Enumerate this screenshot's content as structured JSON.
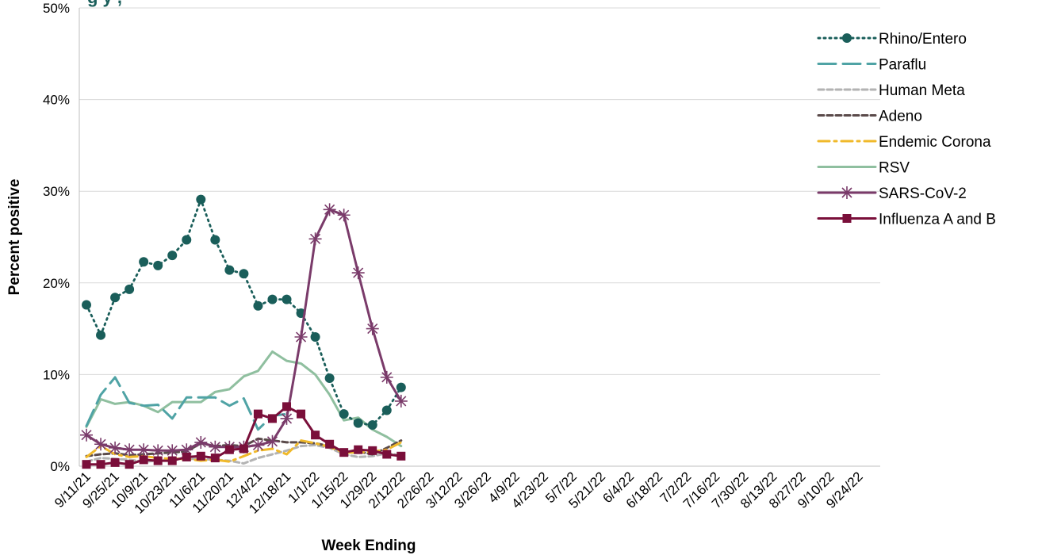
{
  "chart_data": {
    "type": "line",
    "title_fragment": "g   y                              ,",
    "xlabel": "Week Ending",
    "ylabel": "Percent positive",
    "ylim": [
      0,
      50
    ],
    "yticks": [
      "0%",
      "10%",
      "20%",
      "30%",
      "40%",
      "50%"
    ],
    "grid": true,
    "legend": "top-right",
    "x_tick_labels": [
      "9/11/21",
      "9/25/21",
      "10/9/21",
      "10/23/21",
      "11/6/21",
      "11/20/21",
      "12/4/21",
      "12/18/21",
      "1/1/22",
      "1/15/22",
      "1/29/22",
      "2/12/22",
      "2/26/22",
      "3/12/22",
      "3/26/22",
      "4/9/22",
      "4/23/22",
      "5/7/22",
      "5/21/22",
      "6/4/22",
      "6/18/22",
      "7/2/22",
      "7/16/22",
      "7/30/22",
      "8/13/22",
      "8/27/22",
      "9/10/22",
      "9/24/22"
    ],
    "weeks": [
      "9/11/21",
      "9/18/21",
      "9/25/21",
      "10/2/21",
      "10/9/21",
      "10/16/21",
      "10/23/21",
      "10/30/21",
      "11/6/21",
      "11/13/21",
      "11/20/21",
      "11/27/21",
      "12/4/21",
      "12/11/21",
      "12/18/21",
      "12/25/21",
      "1/1/22",
      "1/8/22",
      "1/15/22",
      "1/22/22",
      "1/29/22",
      "2/5/22",
      "2/12/22"
    ],
    "series": [
      {
        "name": "Rhino/Entero",
        "color": "#1a5e5a",
        "style": "dotted-circle",
        "values": [
          17.6,
          14.3,
          18.4,
          19.3,
          22.3,
          21.9,
          23.0,
          24.7,
          29.1,
          24.7,
          21.4,
          21.0,
          17.5,
          18.2,
          18.2,
          16.7,
          14.1,
          9.6,
          5.7,
          4.7,
          4.5,
          6.1,
          8.6
        ]
      },
      {
        "name": "Paraflu",
        "color": "#4fa3a5",
        "style": "long-dash",
        "values": [
          4.4,
          7.8,
          9.7,
          6.9,
          6.6,
          6.7,
          5.2,
          7.5,
          7.5,
          7.5,
          6.6,
          7.4,
          4.0,
          5.5,
          5.7,
          null,
          null,
          null,
          null,
          null,
          null,
          null,
          null
        ]
      },
      {
        "name": "Human Meta",
        "color": "#b3b3b3",
        "style": "dash",
        "values": [
          0.5,
          0.9,
          0.8,
          0.7,
          0.5,
          0.6,
          0.8,
          0.8,
          0.8,
          0.7,
          0.6,
          0.3,
          0.9,
          1.3,
          1.7,
          2.2,
          2.3,
          2.0,
          1.3,
          1.0,
          1.1,
          1.4,
          1.2
        ]
      },
      {
        "name": "Adeno",
        "color": "#5a4a4a",
        "style": "dash",
        "values": [
          1.1,
          1.3,
          1.4,
          1.2,
          1.3,
          1.4,
          1.5,
          1.6,
          2.5,
          2.2,
          2.3,
          2.2,
          3.0,
          2.8,
          2.6,
          2.6,
          2.5,
          2.2,
          1.6,
          1.6,
          1.3,
          2.0,
          2.8
        ]
      },
      {
        "name": "Endemic Corona",
        "color": "#f0b92a",
        "style": "dash-dot",
        "values": [
          1.0,
          2.2,
          1.3,
          1.0,
          1.1,
          0.9,
          0.8,
          0.8,
          0.6,
          0.7,
          0.5,
          1.1,
          1.7,
          1.9,
          1.3,
          2.8,
          2.5,
          2.1,
          1.5,
          1.5,
          1.6,
          1.8,
          2.6
        ]
      },
      {
        "name": "RSV",
        "color": "#8fbf9f",
        "style": "solid",
        "values": [
          4.3,
          7.3,
          6.8,
          7.0,
          6.6,
          5.9,
          7.0,
          7.0,
          7.0,
          8.1,
          8.4,
          9.8,
          10.4,
          12.5,
          11.5,
          11.2,
          10.0,
          7.8,
          5.0,
          5.3,
          4.0,
          3.2,
          2.2
        ]
      },
      {
        "name": "SARS-CoV-2",
        "color": "#7a3b6a",
        "style": "star",
        "values": [
          3.4,
          2.4,
          2.0,
          1.8,
          1.8,
          1.7,
          1.7,
          1.8,
          2.6,
          2.1,
          2.1,
          2.1,
          2.3,
          2.7,
          5.2,
          14.1,
          24.8,
          28.0,
          27.4,
          21.1,
          15.0,
          9.7,
          7.1
        ]
      },
      {
        "name": "Influenza A and B",
        "color": "#7a0f3a",
        "style": "square",
        "values": [
          0.2,
          0.2,
          0.4,
          0.2,
          0.7,
          0.6,
          0.6,
          1.0,
          1.1,
          0.9,
          1.8,
          1.9,
          5.7,
          5.2,
          6.5,
          5.7,
          3.4,
          2.4,
          1.5,
          1.8,
          1.7,
          1.3,
          1.1
        ]
      }
    ]
  }
}
